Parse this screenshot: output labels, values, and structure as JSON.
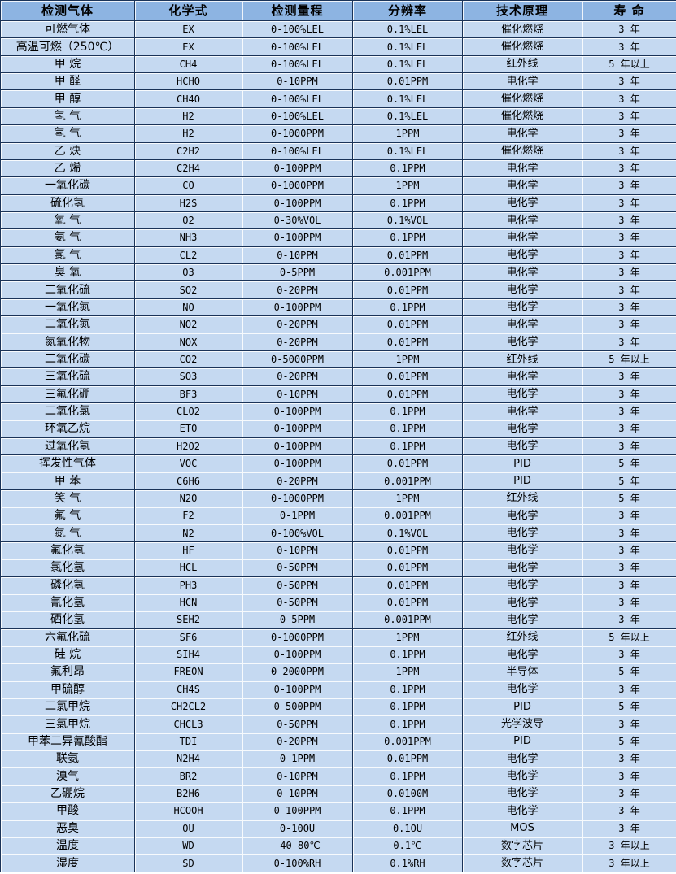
{
  "colors": {
    "header_bg": "#8DB4E2",
    "row_bg": "#C5D9F1",
    "border": "#1A3358",
    "text": "#000000"
  },
  "table": {
    "headers": [
      "检测气体",
      "化学式",
      "检测量程",
      "分辨率",
      "技术原理",
      "寿 命"
    ],
    "rows": [
      [
        "可燃气体",
        "EX",
        "0-100%LEL",
        "0.1%LEL",
        "催化燃烧",
        "3 年"
      ],
      [
        "高温可燃（250℃）",
        "EX",
        "0-100%LEL",
        "0.1%LEL",
        "催化燃烧",
        "3 年"
      ],
      [
        "甲 烷",
        "CH4",
        "0-100%LEL",
        "0.1%LEL",
        "红外线",
        "5 年以上"
      ],
      [
        "甲 醛",
        "HCHO",
        "0-10PPM",
        "0.01PPM",
        "电化学",
        "3 年"
      ],
      [
        "甲 醇",
        "CH4O",
        "0-100%LEL",
        "0.1%LEL",
        "催化燃烧",
        "3 年"
      ],
      [
        "氢 气",
        "H2",
        "0-100%LEL",
        "0.1%LEL",
        "催化燃烧",
        "3 年"
      ],
      [
        "氢 气",
        "H2",
        "0-1000PPM",
        "1PPM",
        "电化学",
        "3 年"
      ],
      [
        "乙 炔",
        "C2H2",
        "0-100%LEL",
        "0.1%LEL",
        "催化燃烧",
        "3 年"
      ],
      [
        "乙 烯",
        "C2H4",
        "0-100PPM",
        "0.1PPM",
        "电化学",
        "3 年"
      ],
      [
        "一氧化碳",
        "CO",
        "0-1000PPM",
        "1PPM",
        "电化学",
        "3 年"
      ],
      [
        "硫化氢",
        "H2S",
        "0-100PPM",
        "0.1PPM",
        "电化学",
        "3 年"
      ],
      [
        "氧 气",
        "O2",
        "0-30%VOL",
        "0.1%VOL",
        "电化学",
        "3 年"
      ],
      [
        "氨 气",
        "NH3",
        "0-100PPM",
        "0.1PPM",
        "电化学",
        "3 年"
      ],
      [
        "氯 气",
        "CL2",
        "0-10PPM",
        "0.01PPM",
        "电化学",
        "3 年"
      ],
      [
        "臭 氧",
        "O3",
        "0-5PPM",
        "0.001PPM",
        "电化学",
        "3 年"
      ],
      [
        "二氧化硫",
        "SO2",
        "0-20PPM",
        "0.01PPM",
        "电化学",
        "3 年"
      ],
      [
        "一氧化氮",
        "NO",
        "0-100PPM",
        "0.1PPM",
        "电化学",
        "3 年"
      ],
      [
        "二氧化氮",
        "NO2",
        "0-20PPM",
        "0.01PPM",
        "电化学",
        "3 年"
      ],
      [
        "氮氧化物",
        "NOX",
        "0-20PPM",
        "0.01PPM",
        "电化学",
        "3 年"
      ],
      [
        "二氧化碳",
        "CO2",
        "0-5000PPM",
        "1PPM",
        "红外线",
        "5 年以上"
      ],
      [
        "三氧化硫",
        "SO3",
        "0-20PPM",
        "0.01PPM",
        "电化学",
        "3 年"
      ],
      [
        "三氟化硼",
        "BF3",
        "0-10PPM",
        "0.01PPM",
        "电化学",
        "3 年"
      ],
      [
        "二氧化氯",
        "CLO2",
        "0-100PPM",
        "0.1PPM",
        "电化学",
        "3 年"
      ],
      [
        "环氧乙烷",
        "ETO",
        "0-100PPM",
        "0.1PPM",
        "电化学",
        "3 年"
      ],
      [
        "过氧化氢",
        "H2O2",
        "0-100PPM",
        "0.1PPM",
        "电化学",
        "3 年"
      ],
      [
        "挥发性气体",
        "VOC",
        "0-100PPM",
        "0.01PPM",
        "PID",
        "5 年"
      ],
      [
        "甲 苯",
        "C6H6",
        "0-20PPM",
        "0.001PPM",
        "PID",
        "5 年"
      ],
      [
        "笑 气",
        "N2O",
        "0-1000PPM",
        "1PPM",
        "红外线",
        "5 年"
      ],
      [
        "氟 气",
        "F2",
        "0-1PPM",
        "0.001PPM",
        "电化学",
        "3 年"
      ],
      [
        "氮 气",
        "N2",
        "0-100%VOL",
        "0.1%VOL",
        "电化学",
        "3 年"
      ],
      [
        "氟化氢",
        "HF",
        "0-10PPM",
        "0.01PPM",
        "电化学",
        "3 年"
      ],
      [
        "氯化氢",
        "HCL",
        "0-50PPM",
        "0.01PPM",
        "电化学",
        "3 年"
      ],
      [
        "磷化氢",
        "PH3",
        "0-50PPM",
        "0.01PPM",
        "电化学",
        "3 年"
      ],
      [
        "氰化氢",
        "HCN",
        "0-50PPM",
        "0.01PPM",
        "电化学",
        "3 年"
      ],
      [
        "硒化氢",
        "SEH2",
        "0-5PPM",
        "0.001PPM",
        "电化学",
        "3 年"
      ],
      [
        "六氟化硫",
        "SF6",
        "0-1000PPM",
        "1PPM",
        "红外线",
        "5 年以上"
      ],
      [
        "硅 烷",
        "SIH4",
        "0-100PPM",
        "0.1PPM",
        "电化学",
        "3 年"
      ],
      [
        "氟利昂",
        "FREON",
        "0-2000PPM",
        "1PPM",
        "半导体",
        "5 年"
      ],
      [
        "甲硫醇",
        "CH4S",
        "0-100PPM",
        "0.1PPM",
        "电化学",
        "3 年"
      ],
      [
        "二氯甲烷",
        "CH2CL2",
        "0-500PPM",
        "0.1PPM",
        "PID",
        "5 年"
      ],
      [
        "三氯甲烷",
        "CHCL3",
        "0-50PPM",
        "0.1PPM",
        "光学波导",
        "3 年"
      ],
      [
        "甲苯二异氰酸酯",
        "TDI",
        "0-20PPM",
        "0.001PPM",
        "PID",
        "5 年"
      ],
      [
        "联氨",
        "N2H4",
        "0-1PPM",
        "0.01PPM",
        "电化学",
        "3 年"
      ],
      [
        "溴气",
        "BR2",
        "0-10PPM",
        "0.1PPM",
        "电化学",
        "3 年"
      ],
      [
        "乙硼烷",
        "B2H6",
        "0-10PPM",
        "0.0100M",
        "电化学",
        "3 年"
      ],
      [
        "甲酸",
        "HCOOH",
        "0-100PPM",
        "0.1PPM",
        "电化学",
        "3 年"
      ],
      [
        "恶臭",
        "OU",
        "0-10OU",
        "0.1OU",
        "MOS",
        "3 年"
      ],
      [
        "温度",
        "WD",
        "-40—80℃",
        "0.1℃",
        "数字芯片",
        "3 年以上"
      ],
      [
        "湿度",
        "SD",
        "0-100%RH",
        "0.1%RH",
        "数字芯片",
        "3 年以上"
      ]
    ]
  }
}
